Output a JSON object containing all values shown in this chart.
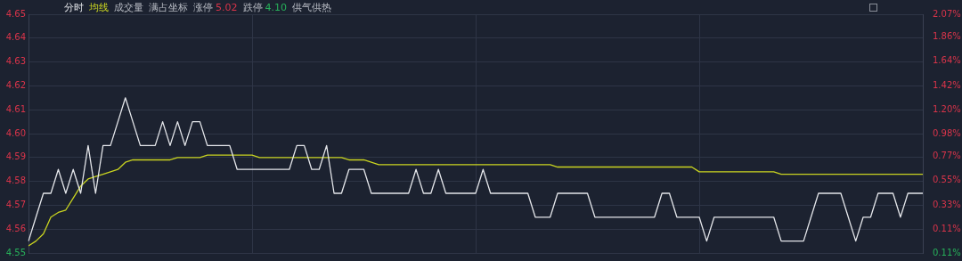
{
  "chart_data": {
    "type": "line",
    "categories": [
      null,
      null,
      null,
      null,
      null,
      null,
      null,
      null,
      null,
      null,
      null,
      null,
      null,
      null,
      null,
      null,
      null,
      null,
      null,
      null,
      null,
      null,
      null,
      null,
      null,
      null,
      null,
      null,
      null,
      null,
      null,
      null,
      null,
      null,
      null,
      null,
      null,
      null,
      null,
      null,
      null,
      null,
      null,
      null,
      null,
      null,
      null,
      null,
      null,
      null,
      null,
      null,
      null,
      null,
      null,
      null,
      null,
      null,
      null,
      null,
      null,
      null,
      null,
      null,
      null,
      null,
      null,
      null,
      null,
      null,
      null,
      null,
      null,
      null,
      null,
      null,
      null,
      null,
      null,
      null,
      null,
      null,
      null,
      null,
      null,
      null,
      null,
      null,
      null,
      null,
      null,
      null,
      null,
      null,
      null,
      null,
      null,
      null,
      null,
      null,
      null,
      null,
      null,
      null,
      null,
      null,
      null,
      null,
      null,
      null,
      null,
      null,
      null,
      null,
      null,
      null,
      null,
      null,
      null,
      null,
      null
    ],
    "series": [
      {
        "name": "分时",
        "color": "#e4e6ea",
        "values": [
          4.555,
          4.565,
          4.575,
          4.575,
          4.585,
          4.575,
          4.585,
          4.575,
          4.595,
          4.575,
          4.595,
          4.595,
          4.605,
          4.615,
          4.605,
          4.595,
          4.595,
          4.595,
          4.605,
          4.595,
          4.605,
          4.595,
          4.605,
          4.605,
          4.595,
          4.595,
          4.595,
          4.595,
          4.585,
          4.585,
          4.585,
          4.585,
          4.585,
          4.585,
          4.585,
          4.585,
          4.595,
          4.595,
          4.585,
          4.585,
          4.595,
          4.575,
          4.575,
          4.585,
          4.585,
          4.585,
          4.575,
          4.575,
          4.575,
          4.575,
          4.575,
          4.575,
          4.585,
          4.575,
          4.575,
          4.585,
          4.575,
          4.575,
          4.575,
          4.575,
          4.575,
          4.585,
          4.575,
          4.575,
          4.575,
          4.575,
          4.575,
          4.575,
          4.565,
          4.565,
          4.565,
          4.575,
          4.575,
          4.575,
          4.575,
          4.575,
          4.565,
          4.565,
          4.565,
          4.565,
          4.565,
          4.565,
          4.565,
          4.565,
          4.565,
          4.575,
          4.575,
          4.565,
          4.565,
          4.565,
          4.565,
          4.555,
          4.565,
          4.565,
          4.565,
          4.565,
          4.565,
          4.565,
          4.565,
          4.565,
          4.565,
          4.555,
          4.555,
          4.555,
          4.555,
          4.565,
          4.575,
          4.575,
          4.575,
          4.575,
          4.565,
          4.555,
          4.565,
          4.565,
          4.575,
          4.575,
          4.575,
          4.565,
          4.575,
          4.575,
          4.575
        ]
      },
      {
        "name": "均线",
        "color": "#c9d420",
        "values": [
          4.553,
          4.555,
          4.558,
          4.565,
          4.567,
          4.568,
          4.573,
          4.578,
          4.581,
          4.582,
          4.583,
          4.584,
          4.585,
          4.588,
          4.589,
          4.589,
          4.589,
          4.589,
          4.589,
          4.589,
          4.59,
          4.59,
          4.59,
          4.59,
          4.591,
          4.591,
          4.591,
          4.591,
          4.591,
          4.591,
          4.591,
          4.59,
          4.59,
          4.59,
          4.59,
          4.59,
          4.59,
          4.59,
          4.59,
          4.59,
          4.59,
          4.59,
          4.59,
          4.589,
          4.589,
          4.589,
          4.588,
          4.587,
          4.587,
          4.587,
          4.587,
          4.587,
          4.587,
          4.587,
          4.587,
          4.587,
          4.587,
          4.587,
          4.587,
          4.587,
          4.587,
          4.587,
          4.587,
          4.587,
          4.587,
          4.587,
          4.587,
          4.587,
          4.587,
          4.587,
          4.587,
          4.586,
          4.586,
          4.586,
          4.586,
          4.586,
          4.586,
          4.586,
          4.586,
          4.586,
          4.586,
          4.586,
          4.586,
          4.586,
          4.586,
          4.586,
          4.586,
          4.586,
          4.586,
          4.586,
          4.584,
          4.584,
          4.584,
          4.584,
          4.584,
          4.584,
          4.584,
          4.584,
          4.584,
          4.584,
          4.584,
          4.583,
          4.583,
          4.583,
          4.583,
          4.583,
          4.583,
          4.583,
          4.583,
          4.583,
          4.583,
          4.583,
          4.583,
          4.583,
          4.583,
          4.583,
          4.583,
          4.583,
          4.583,
          4.583,
          4.583
        ]
      }
    ],
    "ylim": [
      4.55,
      4.65
    ],
    "yticks": [
      4.55,
      4.56,
      4.57,
      4.58,
      4.59,
      {
        "value": 4.6,
        "label": "4.60"
      },
      4.61,
      4.62,
      4.63,
      4.64,
      4.65
    ],
    "y2lim": [
      -0.11,
      2.07
    ],
    "y2ticks": [
      {
        "value": -0.11,
        "label": "0.11%"
      },
      {
        "value": 0.11,
        "label": "0.11%"
      },
      {
        "value": 0.33,
        "label": "0.33%"
      },
      {
        "value": 0.55,
        "label": "0.55%"
      },
      {
        "value": 0.77,
        "label": "0.77%"
      },
      {
        "value": 0.98,
        "label": "0.98%"
      },
      {
        "value": 1.2,
        "label": "1.20%"
      },
      {
        "value": 1.42,
        "label": "1.42%"
      },
      {
        "value": 1.64,
        "label": "1.64%"
      },
      {
        "value": 1.86,
        "label": "1.86%"
      },
      {
        "value": 2.07,
        "label": "2.07%"
      }
    ],
    "annotations": [
      "成交量",
      "满占坐标",
      "涨停",
      "5.02",
      "跌停",
      "4.10",
      "供气供热"
    ],
    "legend": "top left",
    "grid": true,
    "marker": "none",
    "line_style": "solid"
  }
}
